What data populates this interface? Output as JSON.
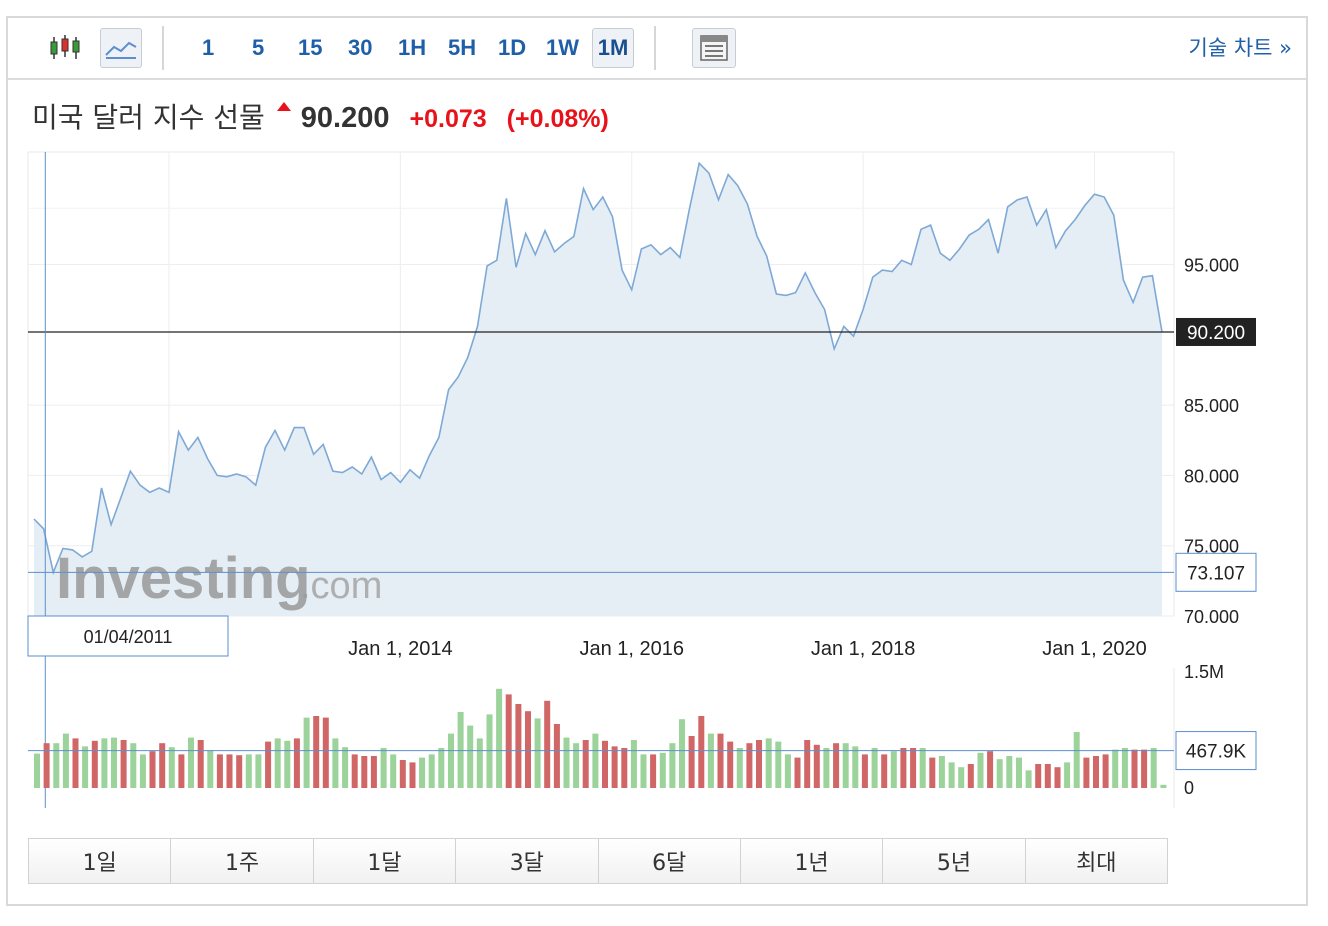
{
  "toolbar": {
    "intervals": [
      "1",
      "5",
      "15",
      "30",
      "1H",
      "5H",
      "1D",
      "1W",
      "1M"
    ],
    "active_interval": "1M",
    "tech_link_label": "기술 차트 »",
    "icons": [
      "candlestick-icon",
      "line-chart-icon",
      "table-icon"
    ]
  },
  "quote": {
    "name": "미국 달러 지수 선물",
    "price": "90.200",
    "change": "+0.073",
    "change_pct": "(+0.08%)",
    "up_color": "#e8121a"
  },
  "periods": [
    "1일",
    "1주",
    "1달",
    "3달",
    "6달",
    "1년",
    "5년",
    "최대"
  ],
  "watermark": {
    "main": "Investing",
    "suffix": ".com"
  },
  "crosshair": {
    "date_label": "01/04/2011",
    "price_label": "73.107",
    "volume_label": "467.9K"
  },
  "chart_data": {
    "type": "area",
    "x_tick_labels": [
      "Jan 1, 2014",
      "Jan 1, 2016",
      "Jan 1, 2018",
      "Jan 1, 2020"
    ],
    "y_tick_labels": [
      "95.000",
      "85.000",
      "80.000",
      "75.000",
      "70.000"
    ],
    "ylim": [
      70,
      103
    ],
    "last_price_label": "90.200",
    "last_price": 90.2,
    "line_color": "#7ea9d6",
    "fill_color": "#e6eef5",
    "price_series": {
      "x_start": "2010-11",
      "interval": "1 month",
      "values": [
        76.9,
        76.2,
        73.1,
        74.8,
        74.7,
        74.2,
        74.6,
        79.1,
        76.5,
        78.4,
        80.3,
        79.3,
        78.8,
        79.1,
        78.8,
        83.1,
        81.8,
        82.7,
        81.2,
        80.0,
        79.9,
        80.1,
        79.9,
        79.3,
        82.0,
        83.2,
        81.8,
        83.4,
        83.4,
        81.5,
        82.2,
        80.3,
        80.2,
        80.6,
        80.1,
        81.3,
        79.7,
        80.2,
        79.5,
        80.4,
        79.8,
        81.4,
        82.7,
        86.1,
        87.0,
        88.4,
        90.6,
        94.9,
        95.3,
        99.7,
        94.8,
        97.2,
        95.7,
        97.4,
        95.9,
        96.5,
        97.0,
        100.4,
        98.9,
        99.8,
        98.4,
        94.6,
        93.2,
        96.1,
        96.4,
        95.7,
        96.2,
        95.5,
        99.0,
        102.2,
        101.5,
        99.6,
        101.4,
        100.6,
        99.3,
        97.0,
        95.6,
        92.9,
        92.8,
        93.0,
        94.4,
        93.0,
        91.8,
        89.0,
        90.6,
        89.9,
        91.8,
        94.1,
        94.6,
        94.5,
        95.3,
        95.0,
        97.5,
        97.8,
        95.8,
        95.3,
        96.1,
        97.1,
        97.5,
        98.2,
        95.8,
        99.1,
        99.6,
        99.8,
        97.8,
        98.9,
        96.2,
        97.4,
        98.2,
        99.2,
        100.0,
        99.8,
        98.5,
        93.9,
        92.3,
        94.1,
        94.2,
        90.2
      ],
      "last_value": 90.2
    },
    "volume_y_tick_labels": [
      "1.5M",
      "0"
    ],
    "volume_ylim": [
      0,
      1500000
    ],
    "up_bar_color": "#9bd39b",
    "down_bar_color": "#d06666",
    "volume_bars": [
      {
        "v": 430000,
        "up": true
      },
      {
        "v": 560000,
        "up": false
      },
      {
        "v": 560000,
        "up": true
      },
      {
        "v": 680000,
        "up": true
      },
      {
        "v": 620000,
        "up": false
      },
      {
        "v": 520000,
        "up": true
      },
      {
        "v": 590000,
        "up": false
      },
      {
        "v": 620000,
        "up": true
      },
      {
        "v": 630000,
        "up": true
      },
      {
        "v": 600000,
        "up": false
      },
      {
        "v": 560000,
        "up": true
      },
      {
        "v": 420000,
        "up": true
      },
      {
        "v": 460000,
        "up": false
      },
      {
        "v": 560000,
        "up": false
      },
      {
        "v": 510000,
        "up": true
      },
      {
        "v": 420000,
        "up": false
      },
      {
        "v": 630000,
        "up": true
      },
      {
        "v": 600000,
        "up": false
      },
      {
        "v": 470000,
        "up": true
      },
      {
        "v": 420000,
        "up": false
      },
      {
        "v": 420000,
        "up": false
      },
      {
        "v": 410000,
        "up": false
      },
      {
        "v": 420000,
        "up": true
      },
      {
        "v": 420000,
        "up": true
      },
      {
        "v": 580000,
        "up": false
      },
      {
        "v": 620000,
        "up": true
      },
      {
        "v": 590000,
        "up": true
      },
      {
        "v": 620000,
        "up": false
      },
      {
        "v": 880000,
        "up": true
      },
      {
        "v": 900000,
        "up": false
      },
      {
        "v": 880000,
        "up": false
      },
      {
        "v": 620000,
        "up": true
      },
      {
        "v": 510000,
        "up": true
      },
      {
        "v": 420000,
        "up": false
      },
      {
        "v": 400000,
        "up": false
      },
      {
        "v": 400000,
        "up": false
      },
      {
        "v": 500000,
        "up": true
      },
      {
        "v": 420000,
        "up": true
      },
      {
        "v": 350000,
        "up": false
      },
      {
        "v": 320000,
        "up": false
      },
      {
        "v": 380000,
        "up": true
      },
      {
        "v": 420000,
        "up": true
      },
      {
        "v": 500000,
        "up": true
      },
      {
        "v": 680000,
        "up": true
      },
      {
        "v": 950000,
        "up": true
      },
      {
        "v": 780000,
        "up": true
      },
      {
        "v": 620000,
        "up": true
      },
      {
        "v": 920000,
        "up": true
      },
      {
        "v": 1240000,
        "up": true
      },
      {
        "v": 1170000,
        "up": false
      },
      {
        "v": 1050000,
        "up": false
      },
      {
        "v": 960000,
        "up": false
      },
      {
        "v": 870000,
        "up": true
      },
      {
        "v": 1090000,
        "up": false
      },
      {
        "v": 800000,
        "up": false
      },
      {
        "v": 630000,
        "up": true
      },
      {
        "v": 560000,
        "up": true
      },
      {
        "v": 600000,
        "up": false
      },
      {
        "v": 680000,
        "up": true
      },
      {
        "v": 590000,
        "up": false
      },
      {
        "v": 520000,
        "up": false
      },
      {
        "v": 500000,
        "up": false
      },
      {
        "v": 600000,
        "up": true
      },
      {
        "v": 420000,
        "up": true
      },
      {
        "v": 420000,
        "up": false
      },
      {
        "v": 440000,
        "up": true
      },
      {
        "v": 560000,
        "up": true
      },
      {
        "v": 860000,
        "up": true
      },
      {
        "v": 650000,
        "up": false
      },
      {
        "v": 900000,
        "up": false
      },
      {
        "v": 680000,
        "up": true
      },
      {
        "v": 680000,
        "up": false
      },
      {
        "v": 580000,
        "up": false
      },
      {
        "v": 500000,
        "up": true
      },
      {
        "v": 560000,
        "up": false
      },
      {
        "v": 600000,
        "up": false
      },
      {
        "v": 620000,
        "up": true
      },
      {
        "v": 580000,
        "up": true
      },
      {
        "v": 420000,
        "up": true
      },
      {
        "v": 380000,
        "up": false
      },
      {
        "v": 600000,
        "up": false
      },
      {
        "v": 540000,
        "up": false
      },
      {
        "v": 500000,
        "up": true
      },
      {
        "v": 560000,
        "up": false
      },
      {
        "v": 560000,
        "up": true
      },
      {
        "v": 520000,
        "up": true
      },
      {
        "v": 420000,
        "up": false
      },
      {
        "v": 500000,
        "up": true
      },
      {
        "v": 420000,
        "up": false
      },
      {
        "v": 460000,
        "up": true
      },
      {
        "v": 500000,
        "up": false
      },
      {
        "v": 500000,
        "up": false
      },
      {
        "v": 500000,
        "up": true
      },
      {
        "v": 380000,
        "up": false
      },
      {
        "v": 400000,
        "up": true
      },
      {
        "v": 320000,
        "up": true
      },
      {
        "v": 260000,
        "up": true
      },
      {
        "v": 300000,
        "up": false
      },
      {
        "v": 440000,
        "up": true
      },
      {
        "v": 460000,
        "up": false
      },
      {
        "v": 360000,
        "up": true
      },
      {
        "v": 400000,
        "up": true
      },
      {
        "v": 380000,
        "up": true
      },
      {
        "v": 220000,
        "up": true
      },
      {
        "v": 300000,
        "up": false
      },
      {
        "v": 300000,
        "up": false
      },
      {
        "v": 260000,
        "up": false
      },
      {
        "v": 320000,
        "up": true
      },
      {
        "v": 700000,
        "up": true
      },
      {
        "v": 380000,
        "up": false
      },
      {
        "v": 400000,
        "up": false
      },
      {
        "v": 420000,
        "up": false
      },
      {
        "v": 480000,
        "up": true
      },
      {
        "v": 500000,
        "up": true
      },
      {
        "v": 480000,
        "up": false
      },
      {
        "v": 480000,
        "up": false
      },
      {
        "v": 500000,
        "up": true
      },
      {
        "v": 40000,
        "up": true
      }
    ]
  }
}
